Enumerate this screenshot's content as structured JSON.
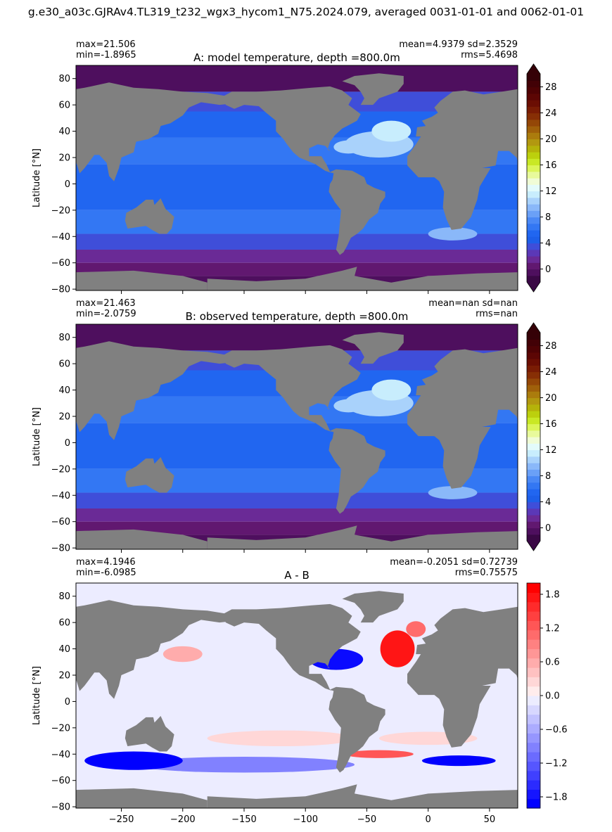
{
  "suptitle": "g.e30_a03c.GJRAv4.TL319_t232_wgx3_hycom1_N75.2024.079, averaged 0031-01-01 and 0062-01-01",
  "chart_data": [
    {
      "type": "heatmap",
      "title": "A: model temperature, depth =800.0m",
      "stats_left": [
        "max=21.506",
        "min=-1.8965"
      ],
      "stats_right": [
        "mean=4.9379 sd=2.3529",
        "rms=5.4698"
      ],
      "ylabel": "Latitude [°N]",
      "xlabel": "",
      "xlim": [
        -287,
        73
      ],
      "ylim": [
        -81,
        90
      ],
      "yticks": [
        -80,
        -60,
        -40,
        -20,
        0,
        20,
        40,
        60,
        80
      ],
      "xticks": [
        -250,
        -200,
        -150,
        -100,
        -50,
        0,
        50
      ],
      "show_xticklabels": false,
      "land_color": "#808080",
      "colorbar": {
        "ticks": [
          0,
          4,
          8,
          12,
          16,
          20,
          24,
          28
        ],
        "range": [
          -2,
          30
        ],
        "extend": "both",
        "colors": [
          "#3a0845",
          "#4e0f5e",
          "#611870",
          "#6a2a96",
          "#5b38b7",
          "#3f4ed9",
          "#1d5fe9",
          "#2166f0",
          "#3377f3",
          "#4a88f5",
          "#6aa0f7",
          "#8ab8f9",
          "#a9d2fb",
          "#c8edfd",
          "#e3fbfb",
          "#f0fcd6",
          "#e8fa9c",
          "#dcf55a",
          "#c9e825",
          "#bcd00d",
          "#b5b30a",
          "#b29810",
          "#ab7c0d",
          "#a0600a",
          "#944707",
          "#872f05",
          "#7a1c04",
          "#6b0e03",
          "#5c0604",
          "#4e0204",
          "#420106",
          "#350107"
        ]
      }
    },
    {
      "type": "heatmap",
      "title": "B: observed temperature, depth =800.0m",
      "stats_left": [
        "max=21.463",
        "min=-2.0759"
      ],
      "stats_right": [
        "mean=nan sd=nan",
        "rms=nan"
      ],
      "ylabel": "Latitude [°N]",
      "xlabel": "",
      "xlim": [
        -287,
        73
      ],
      "ylim": [
        -81,
        90
      ],
      "yticks": [
        -80,
        -60,
        -40,
        -20,
        0,
        20,
        40,
        60,
        80
      ],
      "xticks": [
        -250,
        -200,
        -150,
        -100,
        -50,
        0,
        50
      ],
      "show_xticklabels": false,
      "land_color": "#808080",
      "colorbar": {
        "ticks": [
          0,
          4,
          8,
          12,
          16,
          20,
          24,
          28
        ],
        "range": [
          -2,
          30
        ],
        "extend": "both",
        "colors": [
          "#3a0845",
          "#4e0f5e",
          "#611870",
          "#6a2a96",
          "#5b38b7",
          "#3f4ed9",
          "#1d5fe9",
          "#2166f0",
          "#3377f3",
          "#4a88f5",
          "#6aa0f7",
          "#8ab8f9",
          "#a9d2fb",
          "#c8edfd",
          "#e3fbfb",
          "#f0fcd6",
          "#e8fa9c",
          "#dcf55a",
          "#c9e825",
          "#bcd00d",
          "#b5b30a",
          "#b29810",
          "#ab7c0d",
          "#a0600a",
          "#944707",
          "#872f05",
          "#7a1c04",
          "#6b0e03",
          "#5c0604",
          "#4e0204",
          "#420106",
          "#350107"
        ]
      }
    },
    {
      "type": "heatmap",
      "title": "A - B",
      "stats_left": [
        "max=4.1946",
        "min=-6.0985"
      ],
      "stats_right": [
        "mean=-0.2051 sd=0.72739",
        "rms=0.75575"
      ],
      "ylabel": "Latitude [°N]",
      "xlabel": "",
      "xlim": [
        -287,
        73
      ],
      "ylim": [
        -81,
        90
      ],
      "yticks": [
        -80,
        -60,
        -40,
        -20,
        0,
        20,
        40,
        60,
        80
      ],
      "xticks": [
        -250,
        -200,
        -150,
        -100,
        -50,
        0,
        50
      ],
      "show_xticklabels": true,
      "land_color": "#808080",
      "colorbar": {
        "ticks": [
          -1.8,
          -1.2,
          -0.6,
          0.0,
          0.6,
          1.2,
          1.8
        ],
        "tick_labels": [
          "−1.8",
          "−1.2",
          "−0.6",
          "0.0",
          "0.6",
          "1.2",
          "1.8"
        ],
        "range": [
          -2,
          2
        ],
        "extend": "neither",
        "colors": [
          "#0000ff",
          "#1515ff",
          "#2b2bff",
          "#4040ff",
          "#5656ff",
          "#6b6bff",
          "#8181ff",
          "#9696ff",
          "#acacff",
          "#c1c1ff",
          "#d7d7ff",
          "#ececff",
          "#ffecec",
          "#ffd7d7",
          "#ffc1c1",
          "#ffacac",
          "#ff9696",
          "#ff8181",
          "#ff6b6b",
          "#ff5656",
          "#ff4040",
          "#ff2b2b",
          "#ff1515",
          "#ff0000"
        ]
      }
    }
  ]
}
